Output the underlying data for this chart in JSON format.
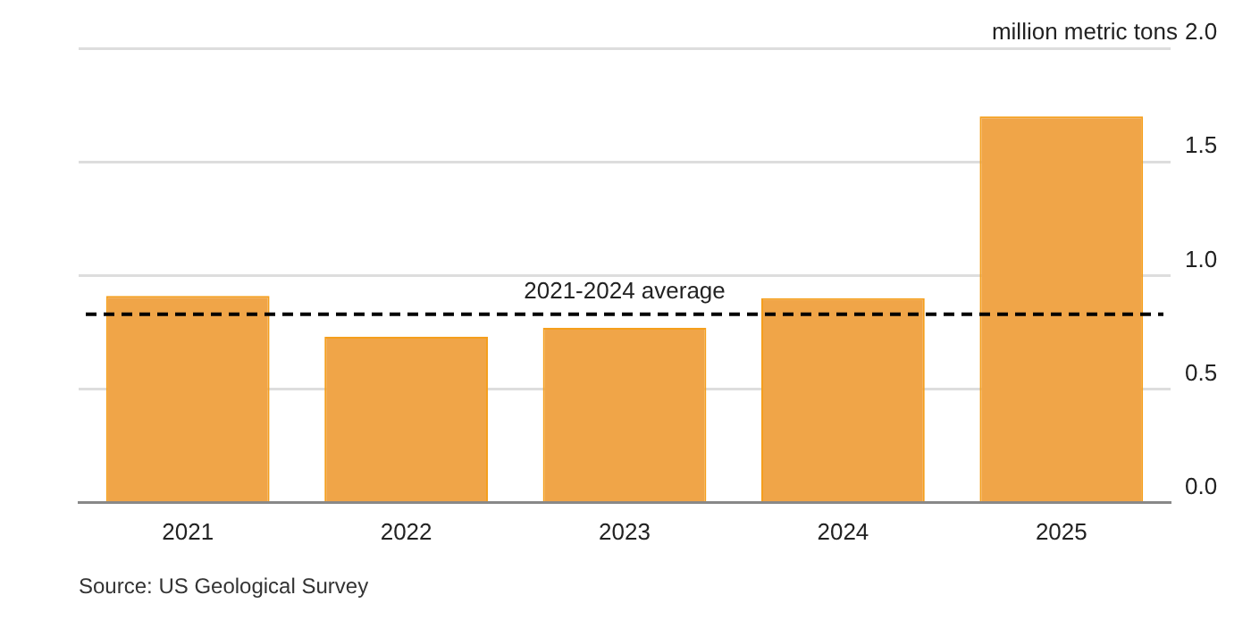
{
  "chart_data": {
    "type": "bar",
    "categories": [
      "2021",
      "2022",
      "2023",
      "2024",
      "2025"
    ],
    "series": [
      {
        "color": "#f0a548",
        "values": [
          0.91,
          0.73,
          0.77,
          0.9,
          1.7
        ]
      }
    ],
    "ylim": [
      0,
      2
    ],
    "yticks": [
      {
        "value": 0,
        "label": "0.0"
      },
      0.5,
      {
        "value": 1,
        "label": "1.0"
      },
      1.5,
      {
        "value": 2,
        "label": "2.0"
      }
    ],
    "ylabel": "million metric tons",
    "grid": "y",
    "legend": false,
    "ref_lines": [
      {
        "axis": "y",
        "value": 0.83,
        "label": "2021-2024 average",
        "color": "#000000",
        "line_style": "dashed"
      }
    ],
    "annotations": [
      "Source: US Geological Survey"
    ]
  }
}
